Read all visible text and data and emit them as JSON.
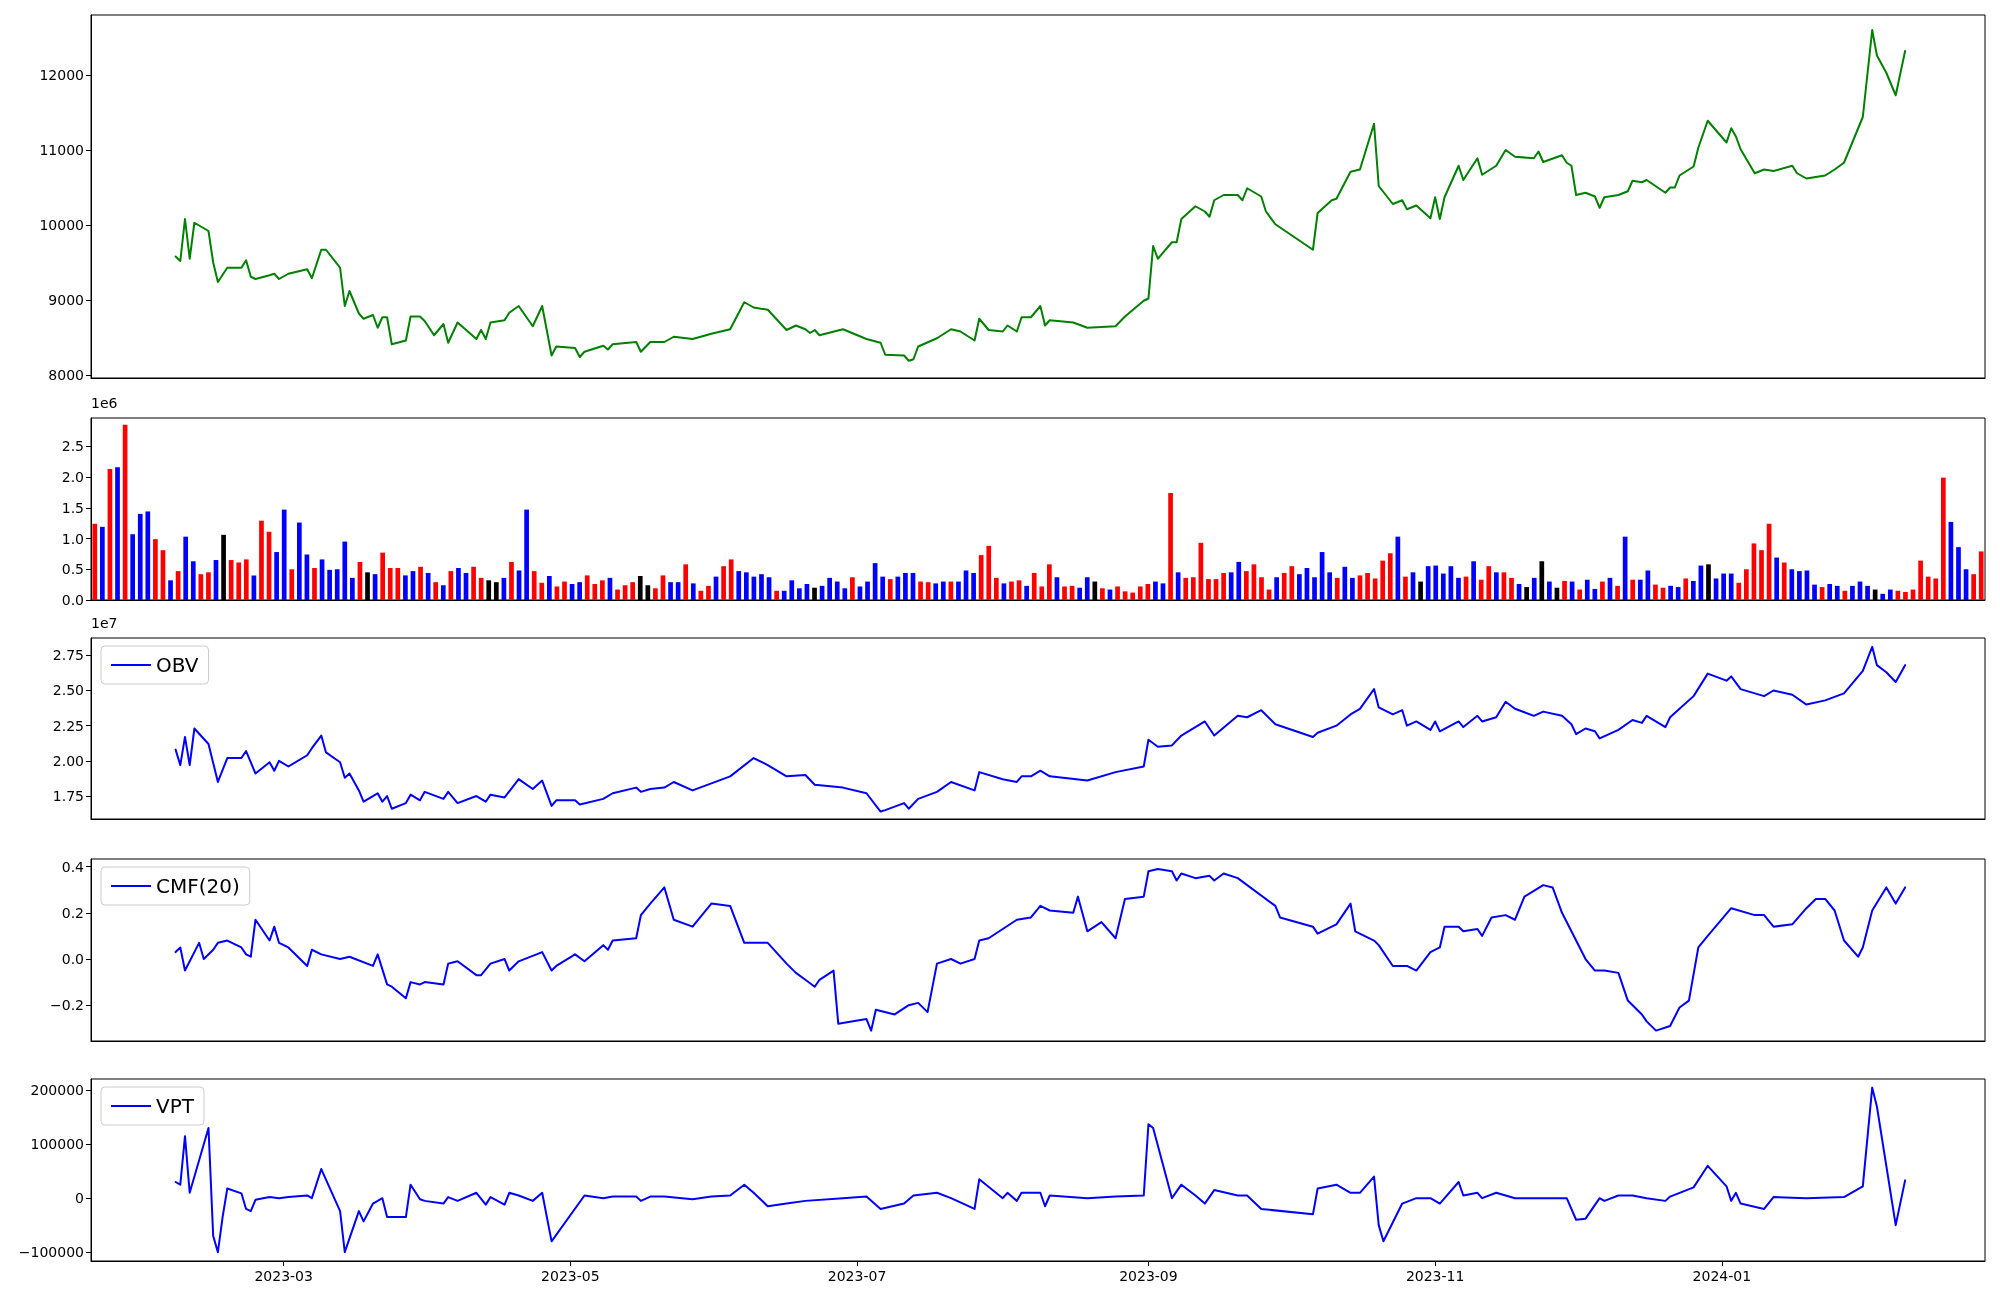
{
  "chart_data": [
    {
      "type": "line",
      "x": [
        "2023-02-06",
        "2023-02-07",
        "2023-02-08",
        "2023-02-09",
        "2023-02-10",
        "2023-02-13",
        "2023-02-14",
        "2023-02-15",
        "2023-02-17",
        "2023-02-20",
        "2023-02-21",
        "2023-02-22",
        "2023-02-23",
        "2023-02-26",
        "2023-02-27",
        "2023-02-28",
        "2023-03-02",
        "2023-03-06",
        "2023-03-07",
        "2023-03-09",
        "2023-03-10",
        "2023-03-13",
        "2023-03-14",
        "2023-03-15",
        "2023-03-17",
        "2023-03-18",
        "2023-03-20",
        "2023-03-21",
        "2023-03-22",
        "2023-03-23",
        "2023-03-24",
        "2023-03-27",
        "2023-03-28",
        "2023-03-30",
        "2023-03-31",
        "2023-04-02",
        "2023-04-04",
        "2023-04-05",
        "2023-04-07",
        "2023-04-11",
        "2023-04-12",
        "2023-04-13",
        "2023-04-14",
        "2023-04-17",
        "2023-04-18",
        "2023-04-20",
        "2023-04-23",
        "2023-04-25",
        "2023-04-27",
        "2023-04-28",
        "2023-05-02",
        "2023-05-03",
        "2023-05-04",
        "2023-05-08",
        "2023-05-09",
        "2023-05-10",
        "2023-05-15",
        "2023-05-16",
        "2023-05-18",
        "2023-05-21",
        "2023-05-23",
        "2023-05-27",
        "2023-05-31",
        "2023-06-04",
        "2023-06-07",
        "2023-06-09",
        "2023-06-12",
        "2023-06-16",
        "2023-06-18",
        "2023-06-20",
        "2023-06-21",
        "2023-06-22",
        "2023-06-23",
        "2023-06-28",
        "2023-07-03",
        "2023-07-06",
        "2023-07-07",
        "2023-07-11",
        "2023-07-12",
        "2023-07-13",
        "2023-07-14",
        "2023-07-18",
        "2023-07-21",
        "2023-07-23",
        "2023-07-26",
        "2023-07-27",
        "2023-07-29",
        "2023-08-01",
        "2023-08-02",
        "2023-08-04",
        "2023-08-05",
        "2023-08-07",
        "2023-08-09",
        "2023-08-10",
        "2023-08-11",
        "2023-08-16",
        "2023-08-19",
        "2023-08-25",
        "2023-08-27",
        "2023-08-31",
        "2023-09-01",
        "2023-09-02",
        "2023-09-03",
        "2023-09-06",
        "2023-09-07",
        "2023-09-08",
        "2023-09-11",
        "2023-09-13",
        "2023-09-14",
        "2023-09-15",
        "2023-09-17",
        "2023-09-20",
        "2023-09-21",
        "2023-09-22",
        "2023-09-25",
        "2023-09-26",
        "2023-09-28",
        "2023-10-06",
        "2023-10-07",
        "2023-10-10",
        "2023-10-11",
        "2023-10-14",
        "2023-10-16",
        "2023-10-19",
        "2023-10-20",
        "2023-10-23",
        "2023-10-25",
        "2023-10-26",
        "2023-10-28",
        "2023-10-31",
        "2023-11-01",
        "2023-11-02",
        "2023-11-03",
        "2023-11-06",
        "2023-11-07",
        "2023-11-10",
        "2023-11-11",
        "2023-11-14",
        "2023-11-16",
        "2023-11-18",
        "2023-11-22",
        "2023-11-23",
        "2023-11-24",
        "2023-11-28",
        "2023-11-29",
        "2023-11-30",
        "2023-12-01",
        "2023-12-03",
        "2023-12-05",
        "2023-12-06",
        "2023-12-07",
        "2023-12-10",
        "2023-12-12",
        "2023-12-13",
        "2023-12-15",
        "2023-12-16",
        "2023-12-20",
        "2023-12-21",
        "2023-12-22",
        "2023-12-23",
        "2023-12-26",
        "2023-12-27",
        "2023-12-29",
        "2024-01-02",
        "2024-01-03",
        "2024-01-04",
        "2024-01-05",
        "2024-01-08",
        "2024-01-10",
        "2024-01-12",
        "2024-01-16",
        "2024-01-17",
        "2024-01-19",
        "2024-01-23",
        "2024-01-25",
        "2024-01-27",
        "2024-01-31",
        "2024-02-02",
        "2024-02-03",
        "2024-02-05",
        "2024-02-07",
        "2024-02-09"
      ],
      "series": [
        {
          "color": "#008000",
          "values": [
            9580,
            9520,
            10080,
            9550,
            10030,
            9920,
            9500,
            9240,
            9430,
            9430,
            9530,
            9310,
            9280,
            9330,
            9350,
            9280,
            9350,
            9410,
            9290,
            9670,
            9670,
            9430,
            8920,
            9120,
            8820,
            8750,
            8800,
            8630,
            8770,
            8770,
            8410,
            8460,
            8780,
            8780,
            8720,
            8530,
            8680,
            8430,
            8700,
            8480,
            8600,
            8480,
            8700,
            8730,
            8830,
            8920,
            8650,
            8920,
            8260,
            8380,
            8360,
            8240,
            8310,
            8390,
            8340,
            8410,
            8440,
            8310,
            8440,
            8440,
            8510,
            8480,
            8550,
            8610,
            8970,
            8900,
            8870,
            8600,
            8660,
            8610,
            8560,
            8600,
            8530,
            8610,
            8480,
            8430,
            8270,
            8260,
            8190,
            8210,
            8380,
            8490,
            8610,
            8580,
            8460,
            8750,
            8600,
            8580,
            8660,
            8580,
            8770,
            8770,
            8920,
            8660,
            8730,
            8700,
            8630,
            8650,
            8780,
            8990,
            9020,
            9720,
            9550,
            9770,
            9770,
            10080,
            10250,
            10180,
            10110,
            10330,
            10400,
            10400,
            10330,
            10490,
            10380,
            10180,
            10010,
            9670,
            10160,
            10330,
            10350,
            10710,
            10740,
            11350,
            10520,
            10280,
            10330,
            10210,
            10260,
            10090,
            10370,
            10080,
            10370,
            10790,
            10600,
            10890,
            10670,
            10790,
            11000,
            10910,
            10890,
            10980,
            10840,
            10930,
            10830,
            10790,
            10400,
            10430,
            10380,
            10230,
            10370,
            10400,
            10450,
            10590,
            10570,
            10600,
            10430,
            10500,
            10500,
            10660,
            10780,
            11030,
            11390,
            11100,
            11290,
            11180,
            11010,
            10690,
            10740,
            10720,
            10790,
            10690,
            10620,
            10660,
            10740,
            10830,
            11440,
            12600,
            12260,
            12030,
            11730,
            12320
          ]
        }
      ],
      "xlim": [
        "2023-01-19",
        "2024-02-26"
      ],
      "ylim": [
        7960,
        12800
      ],
      "yticks": [
        8000,
        9000,
        10000,
        11000,
        12000
      ],
      "tick_labels": "y"
    },
    {
      "type": "bar",
      "categories": [
        null,
        null,
        null,
        null,
        null,
        null,
        null,
        null,
        null,
        null,
        null,
        null,
        null,
        null,
        null,
        null,
        null,
        null,
        null,
        null,
        null,
        null,
        null,
        null,
        null,
        null,
        null,
        null,
        null,
        null,
        null,
        null,
        null,
        null,
        null,
        null,
        null,
        null,
        null,
        null,
        null,
        null,
        null,
        null,
        null,
        null,
        null,
        null,
        null,
        null,
        null,
        null,
        null,
        null,
        null,
        null,
        null,
        null,
        null,
        null,
        null,
        null,
        null,
        null,
        null,
        null,
        null,
        null,
        null,
        null,
        null,
        null,
        null,
        null,
        null,
        null,
        null,
        null,
        null,
        null,
        null,
        null,
        null,
        null,
        null,
        null,
        null,
        null,
        null,
        null,
        null,
        null,
        null,
        null,
        null,
        null,
        null,
        null,
        null,
        null,
        null,
        null,
        null,
        null,
        null,
        null,
        null,
        null,
        null,
        null,
        null,
        null,
        null,
        null,
        null,
        null,
        null,
        null,
        null,
        null,
        null,
        null,
        null,
        null,
        null,
        null,
        null,
        null,
        null,
        null,
        null,
        null,
        null,
        null,
        null,
        null,
        null,
        null,
        null,
        null,
        null,
        null,
        null,
        null,
        null,
        null,
        null,
        null,
        null,
        null,
        null,
        null,
        null,
        null,
        null,
        null,
        null,
        null,
        null,
        null,
        null,
        null,
        null,
        null,
        null,
        null,
        null,
        null,
        null,
        null,
        null,
        null,
        null,
        null,
        null,
        null,
        null,
        null,
        null,
        null,
        null,
        null,
        null,
        null,
        null,
        null,
        null,
        null,
        null,
        null,
        null,
        null,
        null,
        null,
        null,
        null,
        null,
        null,
        null,
        null,
        null,
        null,
        null,
        null,
        null,
        null,
        null,
        null,
        null,
        null,
        null,
        null,
        null,
        null,
        null,
        null,
        null,
        null,
        null,
        null,
        null,
        null,
        null,
        null,
        null,
        null,
        null,
        null,
        null,
        null,
        null,
        null,
        null,
        null,
        null,
        null,
        null,
        null,
        null,
        null,
        null,
        null,
        null,
        null,
        null,
        null,
        null,
        null,
        null,
        null
      ],
      "values": [
        1.24,
        1.19,
        2.13,
        2.16,
        2.85,
        1.07,
        1.4,
        1.44,
        0.99,
        0.81,
        0.32,
        0.47,
        1.03,
        0.63,
        0.42,
        0.45,
        0.65,
        1.06,
        0.65,
        0.61,
        0.66,
        0.4,
        1.29,
        1.11,
        0.78,
        1.47,
        0.5,
        1.26,
        0.74,
        0.52,
        0.66,
        0.49,
        0.5,
        0.95,
        0.36,
        0.62,
        0.45,
        0.42,
        0.77,
        0.52,
        0.52,
        0.4,
        0.47,
        0.54,
        0.44,
        0.29,
        0.24,
        0.47,
        0.52,
        0.44,
        0.54,
        0.36,
        0.32,
        0.29,
        0.36,
        0.62,
        0.48,
        1.47,
        0.47,
        0.28,
        0.39,
        0.22,
        0.3,
        0.26,
        0.29,
        0.4,
        0.26,
        0.32,
        0.36,
        0.17,
        0.24,
        0.29,
        0.39,
        0.24,
        0.19,
        0.4,
        0.29,
        0.29,
        0.58,
        0.27,
        0.15,
        0.23,
        0.38,
        0.55,
        0.66,
        0.47,
        0.45,
        0.38,
        0.42,
        0.37,
        0.15,
        0.15,
        0.32,
        0.19,
        0.26,
        0.2,
        0.23,
        0.36,
        0.3,
        0.19,
        0.37,
        0.22,
        0.3,
        0.6,
        0.38,
        0.34,
        0.38,
        0.44,
        0.44,
        0.3,
        0.29,
        0.27,
        0.3,
        0.3,
        0.3,
        0.48,
        0.44,
        0.73,
        0.88,
        0.36,
        0.27,
        0.3,
        0.32,
        0.23,
        0.44,
        0.22,
        0.58,
        0.37,
        0.22,
        0.23,
        0.2,
        0.37,
        0.3,
        0.19,
        0.17,
        0.22,
        0.14,
        0.12,
        0.22,
        0.26,
        0.3,
        0.27,
        1.74,
        0.45,
        0.36,
        0.37,
        0.93,
        0.34,
        0.34,
        0.44,
        0.45,
        0.62,
        0.47,
        0.58,
        0.37,
        0.17,
        0.37,
        0.44,
        0.55,
        0.42,
        0.52,
        0.37,
        0.78,
        0.45,
        0.36,
        0.54,
        0.36,
        0.4,
        0.44,
        0.35,
        0.64,
        0.76,
        1.03,
        0.38,
        0.45,
        0.3,
        0.55,
        0.56,
        0.43,
        0.55,
        0.36,
        0.38,
        0.63,
        0.33,
        0.55,
        0.45,
        0.45,
        0.36,
        0.26,
        0.21,
        0.36,
        0.63,
        0.3,
        0.2,
        0.31,
        0.3,
        0.17,
        0.33,
        0.18,
        0.3,
        0.36,
        0.23,
        1.03,
        0.33,
        0.33,
        0.48,
        0.25,
        0.2,
        0.23,
        0.21,
        0.35,
        0.31,
        0.56,
        0.58,
        0.35,
        0.43,
        0.43,
        0.28,
        0.5,
        0.92,
        0.81,
        1.24,
        0.69,
        0.61,
        0.5,
        0.47,
        0.48,
        0.25,
        0.21,
        0.26,
        0.23,
        0.15,
        0.23,
        0.3,
        0.23,
        0.17,
        0.1,
        0.17,
        0.15,
        0.13,
        0.17,
        0.64,
        0.38,
        0.35,
        1.99,
        1.27,
        0.86,
        0.5,
        0.42,
        0.79
      ],
      "colors": [
        "#ff0000",
        "#0000ff",
        "#ff0000",
        "#0000ff",
        "#ff0000",
        "#0000ff",
        "#0000ff",
        "#0000ff",
        "#ff0000",
        "#ff0000",
        "#0000ff",
        "#ff0000",
        "#0000ff",
        "#0000ff",
        "#ff0000",
        "#ff0000",
        "#0000ff",
        "#000000",
        "#ff0000",
        "#ff0000",
        "#ff0000",
        "#0000ff",
        "#ff0000",
        "#ff0000",
        "#0000ff",
        "#0000ff",
        "#ff0000",
        "#0000ff",
        "#0000ff",
        "#ff0000",
        "#0000ff",
        "#0000ff",
        "#0000ff",
        "#0000ff",
        "#0000ff",
        "#ff0000",
        "#000000",
        "#0000ff",
        "#ff0000",
        "#ff0000",
        "#ff0000",
        "#0000ff",
        "#0000ff",
        "#ff0000",
        "#0000ff",
        "#ff0000",
        "#0000ff",
        "#ff0000",
        "#0000ff",
        "#0000ff",
        "#ff0000",
        "#ff0000",
        "#000000",
        "#000000",
        "#0000ff",
        "#ff0000",
        "#0000ff",
        "#0000ff",
        "#ff0000",
        "#ff0000",
        "#0000ff",
        "#ff0000",
        "#ff0000",
        "#0000ff",
        "#0000ff",
        "#ff0000",
        "#ff0000",
        "#ff0000",
        "#0000ff",
        "#ff0000",
        "#ff0000",
        "#ff0000",
        "#000000",
        "#000000",
        "#ff0000",
        "#ff0000",
        "#0000ff",
        "#0000ff",
        "#ff0000",
        "#0000ff",
        "#ff0000",
        "#ff0000",
        "#0000ff",
        "#ff0000",
        "#ff0000",
        "#0000ff",
        "#0000ff",
        "#0000ff",
        "#0000ff",
        "#0000ff",
        "#ff0000",
        "#0000ff",
        "#0000ff",
        "#0000ff",
        "#0000ff",
        "#000000",
        "#0000ff",
        "#0000ff",
        "#0000ff",
        "#0000ff",
        "#ff0000",
        "#0000ff",
        "#0000ff",
        "#0000ff",
        "#0000ff",
        "#ff0000",
        "#0000ff",
        "#0000ff",
        "#0000ff",
        "#ff0000",
        "#ff0000",
        "#0000ff",
        "#0000ff",
        "#ff0000",
        "#0000ff",
        "#0000ff",
        "#0000ff",
        "#ff0000",
        "#ff0000",
        "#ff0000",
        "#0000ff",
        "#ff0000",
        "#ff0000",
        "#0000ff",
        "#ff0000",
        "#ff0000",
        "#ff0000",
        "#0000ff",
        "#ff0000",
        "#ff0000",
        "#0000ff",
        "#0000ff",
        "#000000",
        "#ff0000",
        "#0000ff",
        "#ff0000",
        "#ff0000",
        "#ff0000",
        "#ff0000",
        "#ff0000",
        "#0000ff",
        "#0000ff",
        "#ff0000",
        "#0000ff",
        "#ff0000",
        "#ff0000",
        "#ff0000",
        "#ff0000",
        "#ff0000",
        "#ff0000",
        "#0000ff",
        "#0000ff",
        "#ff0000",
        "#ff0000",
        "#ff0000",
        "#ff0000",
        "#0000ff",
        "#ff0000",
        "#ff0000",
        "#0000ff",
        "#0000ff",
        "#0000ff",
        "#0000ff",
        "#0000ff",
        "#ff0000",
        "#0000ff",
        "#0000ff",
        "#ff0000",
        "#ff0000",
        "#ff0000",
        "#ff0000",
        "#ff0000",
        "#0000ff",
        "#ff0000",
        "#0000ff",
        "#000000",
        "#0000ff",
        "#0000ff",
        "#0000ff",
        "#0000ff",
        "#0000ff",
        "#ff0000",
        "#0000ff",
        "#ff0000",
        "#ff0000",
        "#0000ff",
        "#ff0000",
        "#ff0000",
        "#0000ff",
        "#000000",
        "#0000ff",
        "#000000",
        "#0000ff",
        "#000000",
        "#ff0000",
        "#0000ff",
        "#ff0000",
        "#0000ff",
        "#0000ff",
        "#ff0000",
        "#0000ff",
        "#ff0000",
        "#0000ff",
        "#ff0000",
        "#0000ff",
        "#0000ff",
        "#ff0000",
        "#ff0000",
        "#0000ff",
        "#0000ff",
        "#ff0000",
        "#0000ff",
        "#0000ff",
        "#000000",
        "#0000ff",
        "#0000ff",
        "#0000ff",
        "#ff0000",
        "#ff0000",
        "#ff0000",
        "#ff0000",
        "#ff0000",
        "#0000ff",
        "#ff0000",
        "#0000ff",
        "#0000ff",
        "#0000ff",
        "#0000ff",
        "#ff0000",
        "#0000ff",
        "#0000ff",
        "#ff0000",
        "#0000ff",
        "#0000ff",
        "#0000ff",
        "#000000",
        "#0000ff",
        "#0000ff",
        "#ff0000",
        "#ff0000",
        "#ff0000",
        "#ff0000",
        "#ff0000",
        "#ff0000",
        "#ff0000",
        "#0000ff",
        "#0000ff",
        "#0000ff",
        "#ff0000",
        "#ff0000"
      ],
      "ylim": [
        0,
        2.96
      ],
      "yticks": [
        {
          "value": 0,
          "label": "0.0"
        },
        0.5,
        {
          "value": 1,
          "label": "1.0"
        },
        1.5,
        {
          "value": 2,
          "label": "2.0"
        },
        2.5
      ],
      "annotations": [
        "1e6"
      ],
      "tick_labels": "y"
    },
    {
      "type": "line",
      "x": [
        "2023-02-06",
        "2023-02-07",
        "2023-02-08",
        "2023-02-09",
        "2023-02-10",
        "2023-02-13",
        "2023-02-15",
        "2023-02-17",
        "2023-02-20",
        "2023-02-21",
        "2023-02-23",
        "2023-02-26",
        "2023-02-27",
        "2023-02-28",
        "2023-03-02",
        "2023-03-06",
        "2023-03-07",
        "2023-03-09",
        "2023-03-10",
        "2023-03-13",
        "2023-03-14",
        "2023-03-15",
        "2023-03-17",
        "2023-03-18",
        "2023-03-20",
        "2023-03-21",
        "2023-03-22",
        "2023-03-23",
        "2023-03-24",
        "2023-03-27",
        "2023-03-28",
        "2023-03-30",
        "2023-03-31",
        "2023-04-04",
        "2023-04-05",
        "2023-04-07",
        "2023-04-11",
        "2023-04-13",
        "2023-04-14",
        "2023-04-17",
        "2023-04-20",
        "2023-04-23",
        "2023-04-25",
        "2023-04-27",
        "2023-04-28",
        "2023-05-02",
        "2023-05-03",
        "2023-05-08",
        "2023-05-10",
        "2023-05-15",
        "2023-05-16",
        "2023-05-18",
        "2023-05-21",
        "2023-05-23",
        "2023-05-27",
        "2023-05-31",
        "2023-06-04",
        "2023-06-09",
        "2023-06-12",
        "2023-06-16",
        "2023-06-20",
        "2023-06-22",
        "2023-06-28",
        "2023-07-03",
        "2023-07-06",
        "2023-07-07",
        "2023-07-11",
        "2023-07-12",
        "2023-07-14",
        "2023-07-18",
        "2023-07-21",
        "2023-07-26",
        "2023-07-27",
        "2023-08-01",
        "2023-08-04",
        "2023-08-05",
        "2023-08-07",
        "2023-08-09",
        "2023-08-11",
        "2023-08-19",
        "2023-08-25",
        "2023-08-31",
        "2023-09-01",
        "2023-09-03",
        "2023-09-06",
        "2023-09-08",
        "2023-09-13",
        "2023-09-15",
        "2023-09-20",
        "2023-09-22",
        "2023-09-25",
        "2023-09-28",
        "2023-10-06",
        "2023-10-07",
        "2023-10-11",
        "2023-10-14",
        "2023-10-16",
        "2023-10-19",
        "2023-10-20",
        "2023-10-23",
        "2023-10-25",
        "2023-10-26",
        "2023-10-28",
        "2023-10-31",
        "2023-11-01",
        "2023-11-02",
        "2023-11-06",
        "2023-11-07",
        "2023-11-10",
        "2023-11-11",
        "2023-11-14",
        "2023-11-16",
        "2023-11-18",
        "2023-11-22",
        "2023-11-24",
        "2023-11-28",
        "2023-11-29",
        "2023-11-30",
        "2023-12-01",
        "2023-12-03",
        "2023-12-05",
        "2023-12-06",
        "2023-12-10",
        "2023-12-13",
        "2023-12-15",
        "2023-12-16",
        "2023-12-20",
        "2023-12-21",
        "2023-12-23",
        "2023-12-26",
        "2023-12-29",
        "2024-01-02",
        "2024-01-03",
        "2024-01-05",
        "2024-01-10",
        "2024-01-12",
        "2024-01-16",
        "2024-01-19",
        "2024-01-23",
        "2024-01-27",
        "2024-01-31",
        "2024-02-02",
        "2024-02-03",
        "2024-02-05",
        "2024-02-07",
        "2024-02-09"
      ],
      "series": [
        {
          "name": "OBV",
          "color": "#0000ff",
          "values": [
            2.08,
            1.97,
            2.17,
            1.97,
            2.23,
            2.12,
            1.85,
            2.02,
            2.02,
            2.07,
            1.91,
            1.99,
            1.93,
            2.0,
            1.96,
            2.04,
            2.09,
            2.18,
            2.06,
            1.99,
            1.88,
            1.91,
            1.79,
            1.71,
            1.75,
            1.77,
            1.71,
            1.75,
            1.66,
            1.7,
            1.76,
            1.72,
            1.78,
            1.73,
            1.78,
            1.7,
            1.75,
            1.71,
            1.76,
            1.74,
            1.87,
            1.8,
            1.86,
            1.68,
            1.72,
            1.72,
            1.69,
            1.73,
            1.77,
            1.81,
            1.78,
            1.8,
            1.81,
            1.85,
            1.79,
            1.84,
            1.89,
            2.02,
            1.97,
            1.89,
            1.9,
            1.83,
            1.81,
            1.77,
            1.64,
            1.65,
            1.7,
            1.66,
            1.73,
            1.78,
            1.85,
            1.79,
            1.92,
            1.87,
            1.85,
            1.89,
            1.89,
            1.93,
            1.89,
            1.86,
            1.92,
            1.96,
            2.15,
            2.1,
            2.11,
            2.18,
            2.28,
            2.18,
            2.32,
            2.31,
            2.36,
            2.26,
            2.17,
            2.2,
            2.25,
            2.33,
            2.37,
            2.51,
            2.38,
            2.33,
            2.36,
            2.25,
            2.28,
            2.22,
            2.28,
            2.21,
            2.28,
            2.24,
            2.32,
            2.28,
            2.31,
            2.42,
            2.37,
            2.32,
            2.35,
            2.32,
            2.29,
            2.26,
            2.19,
            2.23,
            2.21,
            2.16,
            2.22,
            2.29,
            2.27,
            2.32,
            2.24,
            2.31,
            2.37,
            2.46,
            2.62,
            2.57,
            2.6,
            2.51,
            2.46,
            2.5,
            2.47,
            2.4,
            2.43,
            2.48,
            2.64,
            2.81,
            2.68,
            2.63,
            2.56,
            2.68
          ]
        }
      ],
      "xlim": [
        "2023-01-19",
        "2024-02-26"
      ],
      "ylim": [
        1.587,
        2.873
      ],
      "yticks": [
        1.75,
        {
          "value": 2,
          "label": "2.00"
        },
        2.25,
        {
          "value": 2.5,
          "label": "2.50"
        },
        2.75
      ],
      "annotations": [
        "1e7"
      ],
      "legend": "top left",
      "tick_labels": "y"
    },
    {
      "type": "line",
      "x": [
        "2023-02-06",
        "2023-02-07",
        "2023-02-08",
        "2023-02-11",
        "2023-02-12",
        "2023-02-14",
        "2023-02-15",
        "2023-02-17",
        "2023-02-20",
        "2023-02-21",
        "2023-02-22",
        "2023-02-23",
        "2023-02-26",
        "2023-02-27",
        "2023-02-28",
        "2023-03-02",
        "2023-03-06",
        "2023-03-07",
        "2023-03-09",
        "2023-03-13",
        "2023-03-15",
        "2023-03-20",
        "2023-03-21",
        "2023-03-23",
        "2023-03-24",
        "2023-03-27",
        "2023-03-28",
        "2023-03-30",
        "2023-03-31",
        "2023-04-04",
        "2023-04-05",
        "2023-04-07",
        "2023-04-11",
        "2023-04-12",
        "2023-04-14",
        "2023-04-17",
        "2023-04-18",
        "2023-04-20",
        "2023-04-25",
        "2023-04-27",
        "2023-04-28",
        "2023-05-02",
        "2023-05-04",
        "2023-05-08",
        "2023-05-09",
        "2023-05-10",
        "2023-05-15",
        "2023-05-16",
        "2023-05-18",
        "2023-05-21",
        "2023-05-23",
        "2023-05-27",
        "2023-05-31",
        "2023-06-04",
        "2023-06-07",
        "2023-06-12",
        "2023-06-16",
        "2023-06-18",
        "2023-06-20",
        "2023-06-22",
        "2023-06-23",
        "2023-06-26",
        "2023-06-27",
        "2023-07-03",
        "2023-07-04",
        "2023-07-05",
        "2023-07-09",
        "2023-07-12",
        "2023-07-14",
        "2023-07-16",
        "2023-07-18",
        "2023-07-21",
        "2023-07-23",
        "2023-07-26",
        "2023-07-27",
        "2023-07-29",
        "2023-08-01",
        "2023-08-04",
        "2023-08-07",
        "2023-08-09",
        "2023-08-11",
        "2023-08-16",
        "2023-08-17",
        "2023-08-19",
        "2023-08-22",
        "2023-08-25",
        "2023-08-27",
        "2023-08-31",
        "2023-09-01",
        "2023-09-03",
        "2023-09-06",
        "2023-09-07",
        "2023-09-08",
        "2023-09-11",
        "2023-09-14",
        "2023-09-15",
        "2023-09-17",
        "2023-09-20",
        "2023-09-28",
        "2023-09-29",
        "2023-10-06",
        "2023-10-07",
        "2023-10-10",
        "2023-10-11",
        "2023-10-14",
        "2023-10-15",
        "2023-10-19",
        "2023-10-20",
        "2023-10-23",
        "2023-10-26",
        "2023-10-28",
        "2023-10-31",
        "2023-11-02",
        "2023-11-03",
        "2023-11-06",
        "2023-11-07",
        "2023-11-10",
        "2023-11-11",
        "2023-11-13",
        "2023-11-16",
        "2023-11-18",
        "2023-11-20",
        "2023-11-24",
        "2023-11-26",
        "2023-11-28",
        "2023-12-01",
        "2023-12-03",
        "2023-12-05",
        "2023-12-07",
        "2023-12-10",
        "2023-12-12",
        "2023-12-15",
        "2023-12-16",
        "2023-12-18",
        "2023-12-21",
        "2023-12-23",
        "2023-12-25",
        "2023-12-27",
        "2023-12-29",
        "2024-01-03",
        "2024-01-08",
        "2024-01-10",
        "2024-01-12",
        "2024-01-16",
        "2024-01-19",
        "2024-01-21",
        "2024-01-23",
        "2024-01-25",
        "2024-01-27",
        "2024-01-30",
        "2024-01-31",
        "2024-02-02",
        "2024-02-05",
        "2024-02-07",
        "2024-02-09"
      ],
      "series": [
        {
          "name": "CMF(20)",
          "color": "#0000ff",
          "values": [
            0.03,
            0.05,
            -0.05,
            0.07,
            0.0,
            0.04,
            0.07,
            0.08,
            0.05,
            0.02,
            0.01,
            0.17,
            0.08,
            0.14,
            0.07,
            0.05,
            -0.03,
            0.04,
            0.02,
            0.0,
            0.01,
            -0.03,
            0.02,
            -0.11,
            -0.12,
            -0.17,
            -0.1,
            -0.11,
            -0.1,
            -0.11,
            -0.02,
            -0.01,
            -0.07,
            -0.07,
            -0.02,
            0.0,
            -0.05,
            -0.01,
            0.03,
            -0.05,
            -0.03,
            0.02,
            -0.01,
            0.06,
            0.04,
            0.08,
            0.09,
            0.19,
            0.24,
            0.31,
            0.17,
            0.14,
            0.24,
            0.23,
            0.07,
            0.07,
            -0.02,
            -0.06,
            -0.09,
            -0.12,
            -0.09,
            -0.05,
            -0.28,
            -0.26,
            -0.31,
            -0.22,
            -0.24,
            -0.2,
            -0.19,
            -0.23,
            -0.02,
            0.0,
            -0.02,
            0.0,
            0.08,
            0.09,
            0.13,
            0.17,
            0.18,
            0.23,
            0.21,
            0.2,
            0.27,
            0.12,
            0.16,
            0.09,
            0.26,
            0.27,
            0.38,
            0.39,
            0.38,
            0.34,
            0.37,
            0.35,
            0.36,
            0.34,
            0.37,
            0.35,
            0.23,
            0.18,
            0.14,
            0.11,
            0.14,
            0.15,
            0.24,
            0.12,
            0.08,
            0.06,
            -0.03,
            -0.03,
            -0.05,
            0.03,
            0.05,
            0.14,
            0.14,
            0.12,
            0.13,
            0.1,
            0.18,
            0.19,
            0.17,
            0.27,
            0.32,
            0.31,
            0.2,
            0.08,
            0.0,
            -0.05,
            -0.05,
            -0.06,
            -0.18,
            -0.24,
            -0.27,
            -0.31,
            -0.29,
            -0.21,
            -0.18,
            0.05,
            0.1,
            0.22,
            0.19,
            0.19,
            0.14,
            0.15,
            0.22,
            0.26,
            0.26,
            0.21,
            0.08,
            0.01,
            0.05,
            0.21,
            0.31,
            0.24,
            0.31
          ]
        }
      ],
      "xlim": [
        "2023-01-19",
        "2024-02-26"
      ],
      "ylim": [
        -0.355,
        0.433
      ],
      "yticks": [
        {
          "value": -0.2,
          "label": "−0.2"
        },
        {
          "value": 0,
          "label": "0.0"
        },
        0.2,
        0.4
      ],
      "legend": "top left",
      "tick_labels": "y"
    },
    {
      "type": "line",
      "x": [
        "2023-02-06",
        "2023-02-07",
        "2023-02-08",
        "2023-02-09",
        "2023-02-13",
        "2023-02-14",
        "2023-02-15",
        "2023-02-16",
        "2023-02-17",
        "2023-02-20",
        "2023-02-21",
        "2023-02-22",
        "2023-02-23",
        "2023-02-26",
        "2023-02-28",
        "2023-03-02",
        "2023-03-06",
        "2023-03-07",
        "2023-03-09",
        "2023-03-13",
        "2023-03-14",
        "2023-03-17",
        "2023-03-18",
        "2023-03-20",
        "2023-03-22",
        "2023-03-23",
        "2023-03-27",
        "2023-03-28",
        "2023-03-30",
        "2023-03-31",
        "2023-04-04",
        "2023-04-05",
        "2023-04-07",
        "2023-04-11",
        "2023-04-13",
        "2023-04-14",
        "2023-04-17",
        "2023-04-18",
        "2023-04-20",
        "2023-04-23",
        "2023-04-25",
        "2023-04-27",
        "2023-05-04",
        "2023-05-08",
        "2023-05-10",
        "2023-05-15",
        "2023-05-16",
        "2023-05-18",
        "2023-05-21",
        "2023-05-27",
        "2023-05-31",
        "2023-06-04",
        "2023-06-07",
        "2023-06-09",
        "2023-06-12",
        "2023-06-16",
        "2023-06-20",
        "2023-06-28",
        "2023-07-03",
        "2023-07-06",
        "2023-07-11",
        "2023-07-13",
        "2023-07-18",
        "2023-07-21",
        "2023-07-26",
        "2023-07-27",
        "2023-08-01",
        "2023-08-02",
        "2023-08-04",
        "2023-08-05",
        "2023-08-09",
        "2023-08-10",
        "2023-08-11",
        "2023-08-19",
        "2023-08-25",
        "2023-08-31",
        "2023-09-01",
        "2023-09-02",
        "2023-09-06",
        "2023-09-08",
        "2023-09-11",
        "2023-09-13",
        "2023-09-15",
        "2023-09-20",
        "2023-09-22",
        "2023-09-25",
        "2023-10-06",
        "2023-10-07",
        "2023-10-11",
        "2023-10-14",
        "2023-10-16",
        "2023-10-19",
        "2023-10-20",
        "2023-10-21",
        "2023-10-25",
        "2023-10-28",
        "2023-10-31",
        "2023-11-02",
        "2023-11-06",
        "2023-11-07",
        "2023-11-10",
        "2023-11-11",
        "2023-11-14",
        "2023-11-18",
        "2023-11-24",
        "2023-11-29",
        "2023-12-01",
        "2023-12-03",
        "2023-12-06",
        "2023-12-07",
        "2023-12-10",
        "2023-12-13",
        "2023-12-16",
        "2023-12-20",
        "2023-12-21",
        "2023-12-26",
        "2023-12-29",
        "2024-01-02",
        "2024-01-03",
        "2024-01-04",
        "2024-01-05",
        "2024-01-10",
        "2024-01-12",
        "2024-01-19",
        "2024-01-27",
        "2024-01-31",
        "2024-02-02",
        "2024-02-03",
        "2024-02-07",
        "2024-02-09"
      ],
      "series": [
        {
          "name": "VPT",
          "color": "#0000ff",
          "values": [
            30000,
            25000,
            115000,
            10000,
            130000,
            -70000,
            -100000,
            -35000,
            18000,
            9000,
            -20000,
            -24000,
            -3000,
            2000,
            0,
            2000,
            5000,
            0,
            54000,
            -24000,
            -100000,
            -24000,
            -43000,
            -10000,
            0,
            -35000,
            -35000,
            25000,
            -2000,
            -5000,
            -10000,
            2000,
            -5000,
            10000,
            -12000,
            2000,
            -12000,
            10000,
            5000,
            -5000,
            10000,
            -80000,
            5000,
            0,
            3000,
            3000,
            -5000,
            3000,
            3000,
            -2000,
            3000,
            5000,
            25000,
            10000,
            -15000,
            -10000,
            -5000,
            0,
            3000,
            -20000,
            -10000,
            5000,
            10000,
            0,
            -20000,
            35000,
            0,
            10000,
            -5000,
            10000,
            10000,
            -15000,
            5000,
            0,
            3000,
            5000,
            137000,
            130000,
            0,
            25000,
            5000,
            -10000,
            15000,
            5000,
            5000,
            -20000,
            -30000,
            18000,
            25000,
            10000,
            10000,
            40000,
            -50000,
            -80000,
            -10000,
            0,
            0,
            -10000,
            30000,
            5000,
            10000,
            0,
            10000,
            0,
            0,
            0,
            -40000,
            -38000,
            0,
            -5000,
            5000,
            5000,
            0,
            -5000,
            3000,
            20000,
            60000,
            22000,
            -5000,
            10000,
            -10000,
            -20000,
            2000,
            0,
            2000,
            22000,
            205000,
            170000,
            -50000,
            33000
          ]
        }
      ],
      "xlim": [
        "2023-01-19",
        "2024-02-26"
      ],
      "ylim": [
        -116500,
        221000
      ],
      "yticks": [
        {
          "value": -100000,
          "label": "−100000"
        },
        0,
        100000,
        200000
      ],
      "xticks": [
        "2023-03",
        "2023-05",
        "2023-07",
        "2023-09",
        "2023-11",
        "2024-01"
      ],
      "legend": "top left"
    }
  ]
}
